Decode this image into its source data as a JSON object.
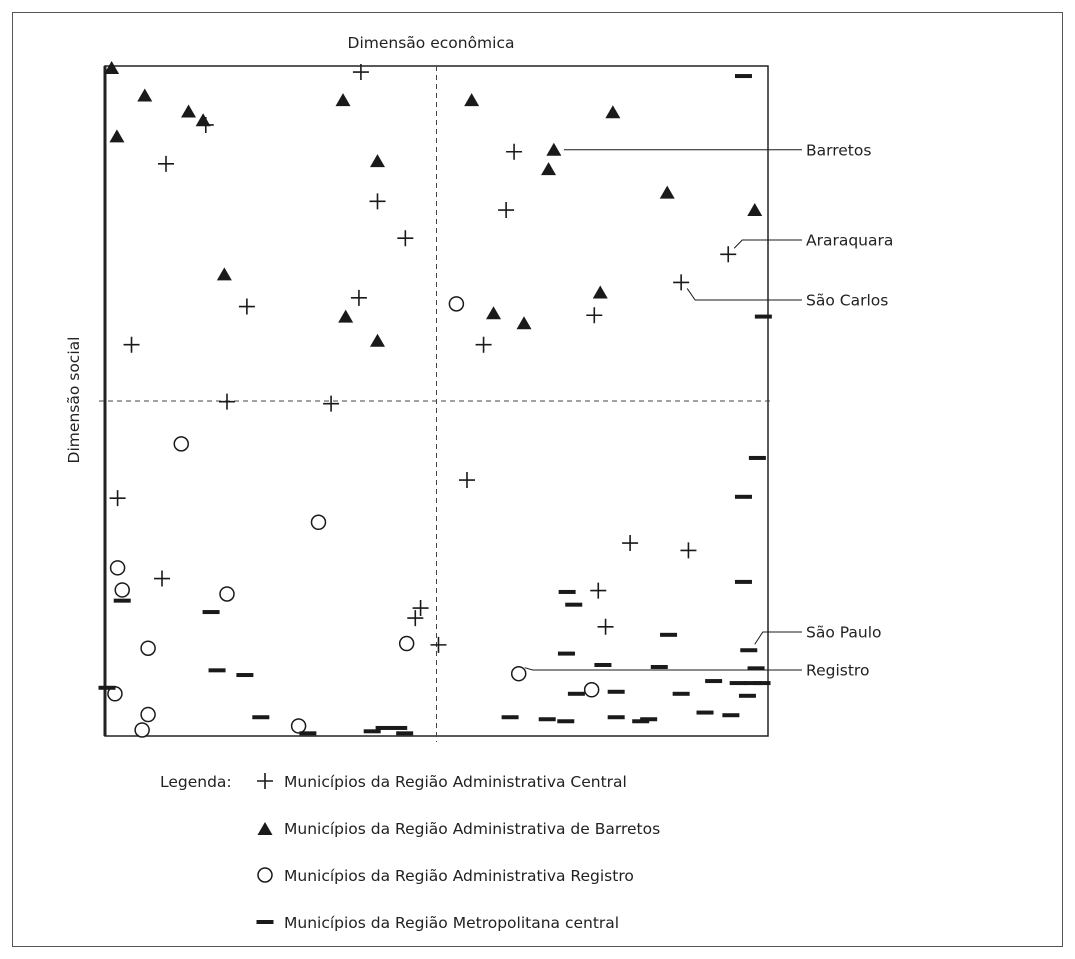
{
  "chart_data": {
    "type": "scatter",
    "title": "",
    "xlabel": "Dimensão econômica",
    "ylabel": "Dimensão social",
    "xlim": [
      0,
      100
    ],
    "ylim": [
      0,
      100
    ],
    "grid": false,
    "quadrant_lines": {
      "x": 50,
      "y": 50
    },
    "colors": {
      "ink": "#1a1a1a",
      "frame": "#222222",
      "background": "#ffffff"
    },
    "legend": {
      "prefix": "Legenda:",
      "placement": "bottom",
      "entries": [
        {
          "marker": "plus",
          "label": "Municípios da Região Administrativa Central"
        },
        {
          "marker": "triangle",
          "label": "Municípios da Região Administrativa de Barretos"
        },
        {
          "marker": "circle",
          "label": "Municípios da Região Administrativa Registro"
        },
        {
          "marker": "dash",
          "label": "Municípios da Região Metropolitana central"
        }
      ]
    },
    "series": [
      {
        "marker": "plus",
        "points": [
          [
            38.6,
            99.1
          ],
          [
            15.2,
            91.2
          ],
          [
            9.2,
            85.4
          ],
          [
            61.7,
            87.2
          ],
          [
            41.1,
            79.8
          ],
          [
            60.5,
            78.5
          ],
          [
            45.3,
            74.3
          ],
          [
            94.0,
            71.9
          ],
          [
            86.9,
            67.7
          ],
          [
            38.3,
            65.4
          ],
          [
            21.4,
            64.1
          ],
          [
            73.8,
            62.8
          ],
          [
            57.1,
            58.4
          ],
          [
            4.0,
            58.4
          ],
          [
            18.4,
            49.9
          ],
          [
            34.1,
            49.6
          ],
          [
            54.6,
            38.2
          ],
          [
            1.9,
            35.5
          ],
          [
            79.2,
            28.8
          ],
          [
            88.0,
            27.7
          ],
          [
            8.6,
            23.5
          ],
          [
            74.4,
            21.7
          ],
          [
            47.6,
            19.1
          ],
          [
            46.8,
            17.6
          ],
          [
            75.5,
            16.3
          ],
          [
            50.3,
            13.6
          ]
        ]
      },
      {
        "marker": "triangle",
        "points": [
          [
            1.0,
            99.7
          ],
          [
            6.0,
            95.6
          ],
          [
            12.6,
            93.2
          ],
          [
            14.8,
            91.9
          ],
          [
            1.8,
            89.5
          ],
          [
            35.9,
            94.9
          ],
          [
            55.3,
            94.9
          ],
          [
            76.6,
            93.1
          ],
          [
            67.7,
            87.5
          ],
          [
            41.1,
            85.8
          ],
          [
            66.9,
            84.6
          ],
          [
            84.8,
            81.1
          ],
          [
            98.0,
            78.5
          ],
          [
            18.0,
            68.9
          ],
          [
            74.7,
            66.2
          ],
          [
            58.6,
            63.1
          ],
          [
            36.3,
            62.6
          ],
          [
            63.2,
            61.6
          ],
          [
            41.1,
            59.0
          ]
        ]
      },
      {
        "marker": "circle",
        "points": [
          [
            53.0,
            64.5
          ],
          [
            11.5,
            43.6
          ],
          [
            32.2,
            31.9
          ],
          [
            1.9,
            25.1
          ],
          [
            2.6,
            21.8
          ],
          [
            18.4,
            21.2
          ],
          [
            6.5,
            13.1
          ],
          [
            45.5,
            13.8
          ],
          [
            62.4,
            9.3
          ],
          [
            73.4,
            6.9
          ],
          [
            1.5,
            6.3
          ],
          [
            6.5,
            3.2
          ],
          [
            5.6,
            0.9
          ],
          [
            29.2,
            1.5
          ]
        ]
      },
      {
        "marker": "dash",
        "points": [
          [
            96.3,
            98.5
          ],
          [
            99.3,
            62.6
          ],
          [
            98.4,
            41.5
          ],
          [
            96.3,
            35.7
          ],
          [
            96.3,
            23.0
          ],
          [
            69.7,
            21.5
          ],
          [
            2.6,
            20.2
          ],
          [
            16.0,
            18.5
          ],
          [
            70.7,
            19.6
          ],
          [
            85.0,
            15.1
          ],
          [
            69.6,
            12.3
          ],
          [
            97.1,
            12.8
          ],
          [
            98.2,
            10.1
          ],
          [
            75.1,
            10.6
          ],
          [
            83.6,
            10.3
          ],
          [
            16.9,
            9.8
          ],
          [
            21.1,
            9.1
          ],
          [
            91.8,
            8.2
          ],
          [
            95.5,
            7.9
          ],
          [
            97.7,
            7.9
          ],
          [
            99.1,
            7.9
          ],
          [
            86.9,
            6.3
          ],
          [
            96.9,
            6.0
          ],
          [
            0.3,
            7.2
          ],
          [
            77.1,
            6.6
          ],
          [
            71.1,
            6.3
          ],
          [
            23.5,
            2.8
          ],
          [
            61.1,
            2.8
          ],
          [
            66.7,
            2.5
          ],
          [
            69.5,
            2.2
          ],
          [
            77.1,
            2.8
          ],
          [
            80.8,
            2.2
          ],
          [
            82.0,
            2.5
          ],
          [
            90.5,
            3.5
          ],
          [
            94.4,
            3.1
          ],
          [
            44.3,
            1.2
          ],
          [
            42.1,
            1.2
          ],
          [
            40.3,
            0.7
          ],
          [
            45.2,
            0.4
          ],
          [
            30.6,
            0.4
          ]
        ]
      }
    ],
    "annotations": [
      {
        "text": "Barretos",
        "point": [
          67.7,
          87.5
        ]
      },
      {
        "text": "Araraquara",
        "point": [
          94.0,
          71.9
        ]
      },
      {
        "text": "São Carlos",
        "point": [
          86.9,
          67.7
        ]
      },
      {
        "text": "São Paulo",
        "point": [
          97.1,
          12.8
        ]
      },
      {
        "text": "Registro",
        "point": [
          62.4,
          9.3
        ]
      }
    ]
  }
}
